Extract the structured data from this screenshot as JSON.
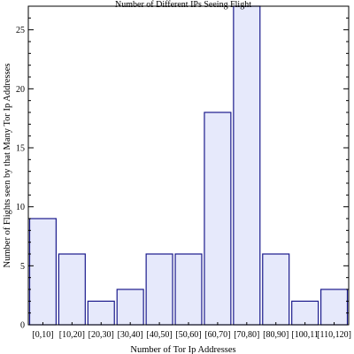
{
  "chart_data": {
    "type": "bar",
    "title": "Number of Different IPs Seeing Flight",
    "xlabel": "Number of Tor Ip Addresses",
    "ylabel": "Number of Flights seen by that Many Tor Ip Addresses",
    "categories": [
      "[0,10]",
      "[10,20]",
      "[20,30]",
      "[30,40]",
      "[40,50]",
      "[50,60]",
      "[60,70]",
      "[70,80]",
      "[80,90]",
      "[100,11",
      "[110,120]"
    ],
    "values": [
      9,
      6,
      2,
      3,
      6,
      6,
      18,
      27,
      6,
      2,
      3
    ],
    "ylim": [
      0,
      27
    ],
    "yticks": [
      0,
      5,
      10,
      15,
      20,
      25
    ],
    "grid": false,
    "bar_fill": "#e6e9fb",
    "bar_stroke": "#1a1a8c"
  }
}
